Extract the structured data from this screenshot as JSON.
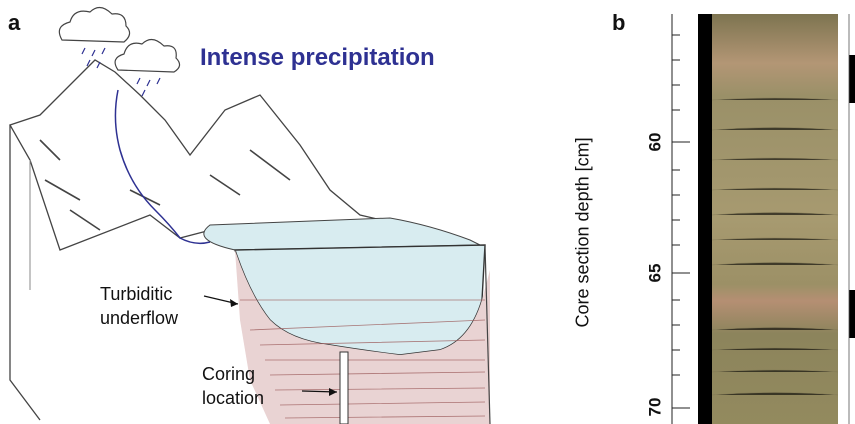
{
  "panel_a": {
    "label": "a",
    "title": "Intense precipitation",
    "callouts": [
      {
        "lines": [
          "Turbiditic",
          "underflow"
        ]
      },
      {
        "lines": [
          "Coring",
          "location"
        ]
      }
    ]
  },
  "panel_b": {
    "label": "b",
    "axis_title": "Core section depth [cm]",
    "tick_labels": [
      "60",
      "65",
      "70"
    ],
    "colors": {
      "core_base": "#9a8f62",
      "light_band": "#b79a78",
      "black_strip": "#000000"
    }
  }
}
